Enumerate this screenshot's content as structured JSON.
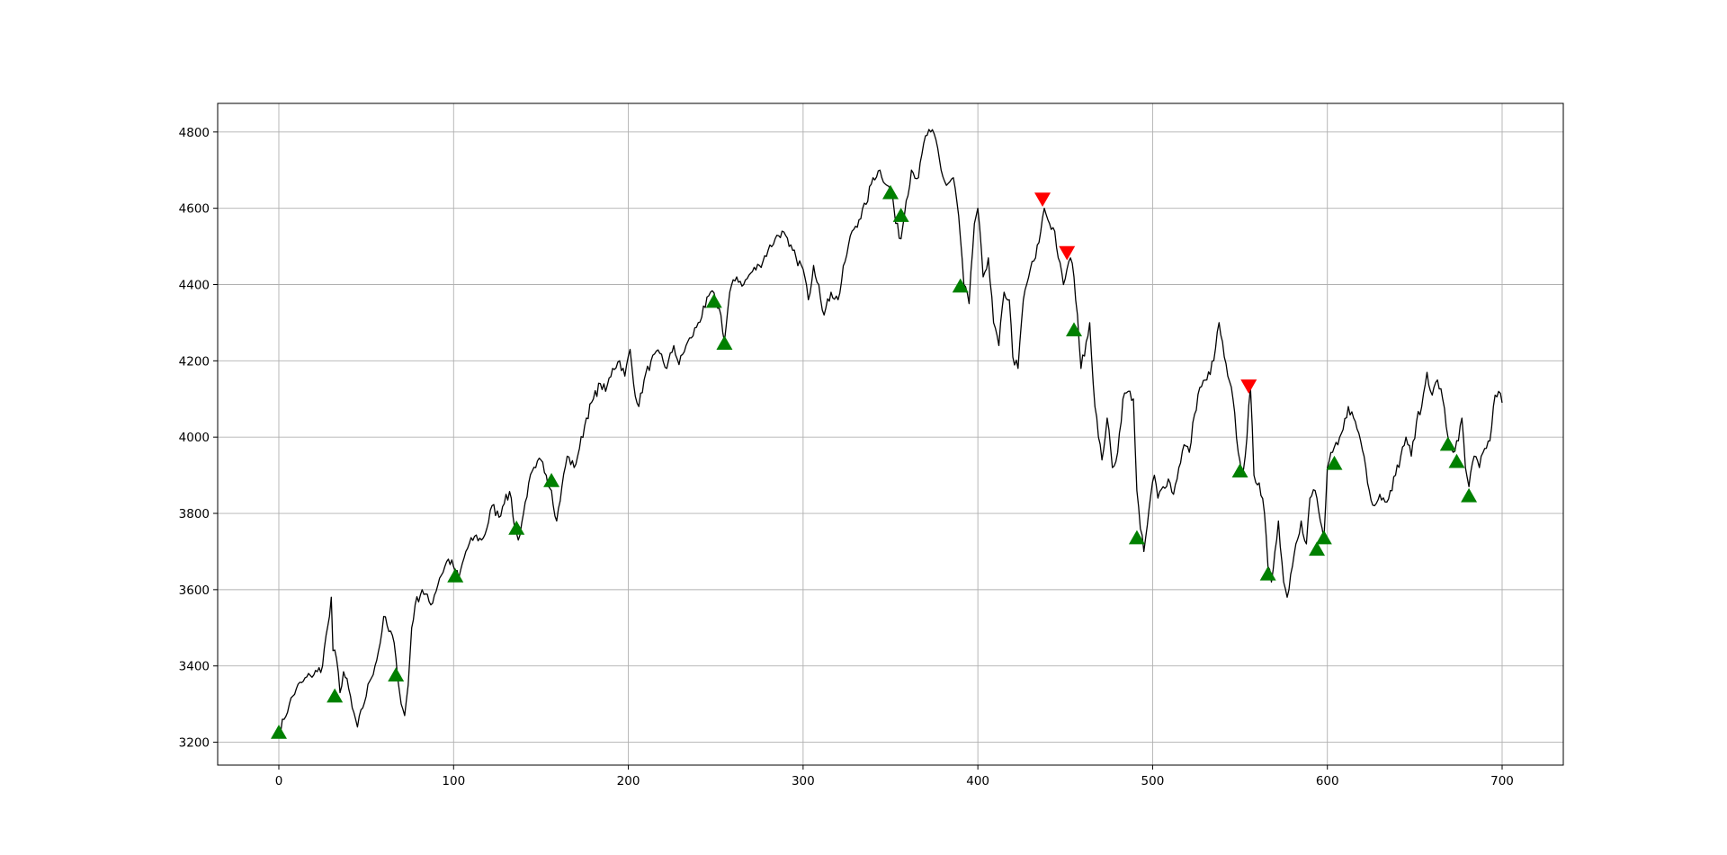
{
  "chart_data": {
    "type": "line",
    "title": "",
    "xlabel": "",
    "ylabel": "",
    "xlim": [
      -35,
      735
    ],
    "ylim": [
      3140,
      4875
    ],
    "x_ticks": [
      0,
      100,
      200,
      300,
      400,
      500,
      600,
      700
    ],
    "y_ticks": [
      3200,
      3400,
      3600,
      3800,
      4000,
      4200,
      4400,
      4600,
      4800
    ],
    "grid": true,
    "line_color": "#000000",
    "price_anchors": [
      [
        0,
        3225
      ],
      [
        3,
        3260
      ],
      [
        6,
        3300
      ],
      [
        10,
        3340
      ],
      [
        14,
        3360
      ],
      [
        18,
        3375
      ],
      [
        22,
        3385
      ],
      [
        25,
        3400
      ],
      [
        27,
        3480
      ],
      [
        29,
        3530
      ],
      [
        30,
        3580
      ],
      [
        31,
        3440
      ],
      [
        33,
        3420
      ],
      [
        35,
        3330
      ],
      [
        37,
        3385
      ],
      [
        40,
        3340
      ],
      [
        42,
        3290
      ],
      [
        45,
        3240
      ],
      [
        48,
        3290
      ],
      [
        52,
        3360
      ],
      [
        55,
        3400
      ],
      [
        58,
        3460
      ],
      [
        60,
        3530
      ],
      [
        63,
        3490
      ],
      [
        65,
        3480
      ],
      [
        67,
        3420
      ],
      [
        70,
        3300
      ],
      [
        72,
        3270
      ],
      [
        74,
        3350
      ],
      [
        76,
        3500
      ],
      [
        78,
        3560
      ],
      [
        82,
        3600
      ],
      [
        87,
        3560
      ],
      [
        92,
        3630
      ],
      [
        97,
        3680
      ],
      [
        100,
        3660
      ],
      [
        103,
        3630
      ],
      [
        107,
        3700
      ],
      [
        112,
        3740
      ],
      [
        116,
        3730
      ],
      [
        119,
        3760
      ],
      [
        122,
        3820
      ],
      [
        126,
        3790
      ],
      [
        130,
        3850
      ],
      [
        133,
        3840
      ],
      [
        135,
        3760
      ],
      [
        137,
        3730
      ],
      [
        140,
        3800
      ],
      [
        143,
        3880
      ],
      [
        147,
        3920
      ],
      [
        150,
        3940
      ],
      [
        153,
        3900
      ],
      [
        156,
        3860
      ],
      [
        159,
        3780
      ],
      [
        162,
        3870
      ],
      [
        165,
        3950
      ],
      [
        169,
        3920
      ],
      [
        172,
        3970
      ],
      [
        176,
        4050
      ],
      [
        180,
        4100
      ],
      [
        184,
        4140
      ],
      [
        187,
        4120
      ],
      [
        191,
        4180
      ],
      [
        195,
        4200
      ],
      [
        198,
        4160
      ],
      [
        201,
        4230
      ],
      [
        203,
        4140
      ],
      [
        206,
        4080
      ],
      [
        209,
        4150
      ],
      [
        213,
        4200
      ],
      [
        218,
        4220
      ],
      [
        222,
        4180
      ],
      [
        226,
        4240
      ],
      [
        229,
        4190
      ],
      [
        233,
        4240
      ],
      [
        236,
        4260
      ],
      [
        240,
        4300
      ],
      [
        244,
        4340
      ],
      [
        247,
        4380
      ],
      [
        250,
        4360
      ],
      [
        253,
        4320
      ],
      [
        255,
        4250
      ],
      [
        258,
        4380
      ],
      [
        262,
        4420
      ],
      [
        266,
        4400
      ],
      [
        270,
        4430
      ],
      [
        275,
        4450
      ],
      [
        280,
        4490
      ],
      [
        284,
        4520
      ],
      [
        288,
        4540
      ],
      [
        292,
        4500
      ],
      [
        296,
        4470
      ],
      [
        300,
        4440
      ],
      [
        303,
        4360
      ],
      [
        306,
        4450
      ],
      [
        309,
        4400
      ],
      [
        312,
        4320
      ],
      [
        316,
        4380
      ],
      [
        320,
        4360
      ],
      [
        324,
        4460
      ],
      [
        328,
        4540
      ],
      [
        332,
        4570
      ],
      [
        336,
        4610
      ],
      [
        340,
        4680
      ],
      [
        344,
        4700
      ],
      [
        348,
        4660
      ],
      [
        351,
        4640
      ],
      [
        353,
        4560
      ],
      [
        356,
        4520
      ],
      [
        359,
        4620
      ],
      [
        362,
        4700
      ],
      [
        366,
        4680
      ],
      [
        370,
        4790
      ],
      [
        373,
        4800
      ],
      [
        376,
        4780
      ],
      [
        379,
        4700
      ],
      [
        382,
        4660
      ],
      [
        386,
        4680
      ],
      [
        389,
        4580
      ],
      [
        392,
        4400
      ],
      [
        395,
        4350
      ],
      [
        398,
        4560
      ],
      [
        400,
        4600
      ],
      [
        403,
        4420
      ],
      [
        406,
        4470
      ],
      [
        409,
        4300
      ],
      [
        412,
        4240
      ],
      [
        415,
        4380
      ],
      [
        418,
        4360
      ],
      [
        420,
        4210
      ],
      [
        423,
        4180
      ],
      [
        426,
        4360
      ],
      [
        430,
        4440
      ],
      [
        433,
        4470
      ],
      [
        436,
        4540
      ],
      [
        438,
        4600
      ],
      [
        441,
        4560
      ],
      [
        444,
        4540
      ],
      [
        446,
        4470
      ],
      [
        449,
        4400
      ],
      [
        451,
        4440
      ],
      [
        453,
        4470
      ],
      [
        455,
        4420
      ],
      [
        457,
        4320
      ],
      [
        459,
        4180
      ],
      [
        462,
        4250
      ],
      [
        464,
        4300
      ],
      [
        466,
        4140
      ],
      [
        469,
        4000
      ],
      [
        471,
        3940
      ],
      [
        474,
        4050
      ],
      [
        477,
        3920
      ],
      [
        480,
        3960
      ],
      [
        483,
        4100
      ],
      [
        486,
        4120
      ],
      [
        489,
        4100
      ],
      [
        491,
        3860
      ],
      [
        493,
        3760
      ],
      [
        495,
        3700
      ],
      [
        497,
        3770
      ],
      [
        499,
        3850
      ],
      [
        501,
        3900
      ],
      [
        503,
        3840
      ],
      [
        506,
        3870
      ],
      [
        509,
        3890
      ],
      [
        512,
        3850
      ],
      [
        515,
        3920
      ],
      [
        518,
        3980
      ],
      [
        521,
        3960
      ],
      [
        524,
        4060
      ],
      [
        527,
        4130
      ],
      [
        531,
        4150
      ],
      [
        535,
        4200
      ],
      [
        538,
        4300
      ],
      [
        541,
        4210
      ],
      [
        543,
        4160
      ],
      [
        546,
        4100
      ],
      [
        549,
        3960
      ],
      [
        551,
        3900
      ],
      [
        553,
        3950
      ],
      [
        556,
        4130
      ],
      [
        558,
        3900
      ],
      [
        561,
        3880
      ],
      [
        564,
        3800
      ],
      [
        566,
        3660
      ],
      [
        568,
        3620
      ],
      [
        570,
        3700
      ],
      [
        572,
        3780
      ],
      [
        575,
        3620
      ],
      [
        577,
        3580
      ],
      [
        579,
        3640
      ],
      [
        582,
        3720
      ],
      [
        585,
        3780
      ],
      [
        588,
        3720
      ],
      [
        590,
        3840
      ],
      [
        593,
        3860
      ],
      [
        596,
        3780
      ],
      [
        598,
        3730
      ],
      [
        600,
        3920
      ],
      [
        603,
        3960
      ],
      [
        606,
        3980
      ],
      [
        609,
        4020
      ],
      [
        612,
        4080
      ],
      [
        615,
        4050
      ],
      [
        618,
        4010
      ],
      [
        621,
        3950
      ],
      [
        624,
        3860
      ],
      [
        627,
        3820
      ],
      [
        630,
        3850
      ],
      [
        633,
        3830
      ],
      [
        636,
        3860
      ],
      [
        639,
        3900
      ],
      [
        642,
        3950
      ],
      [
        645,
        4000
      ],
      [
        648,
        3950
      ],
      [
        651,
        4040
      ],
      [
        654,
        4080
      ],
      [
        657,
        4170
      ],
      [
        660,
        4110
      ],
      [
        663,
        4150
      ],
      [
        666,
        4100
      ],
      [
        669,
        4000
      ],
      [
        672,
        3960
      ],
      [
        675,
        3990
      ],
      [
        677,
        4050
      ],
      [
        679,
        3920
      ],
      [
        681,
        3870
      ],
      [
        684,
        3950
      ],
      [
        687,
        3920
      ],
      [
        690,
        3970
      ],
      [
        693,
        3990
      ],
      [
        696,
        4110
      ],
      [
        698,
        4120
      ],
      [
        700,
        4090
      ]
    ],
    "buy_signals": [
      [
        0,
        3225
      ],
      [
        32,
        3320
      ],
      [
        67,
        3375
      ],
      [
        101,
        3635
      ],
      [
        136,
        3760
      ],
      [
        156,
        3885
      ],
      [
        249,
        4355
      ],
      [
        255,
        4245
      ],
      [
        350,
        4640
      ],
      [
        356,
        4580
      ],
      [
        390,
        4395
      ],
      [
        455,
        4280
      ],
      [
        491,
        3735
      ],
      [
        550,
        3910
      ],
      [
        566,
        3640
      ],
      [
        594,
        3705
      ],
      [
        598,
        3735
      ],
      [
        604,
        3930
      ],
      [
        669,
        3980
      ],
      [
        674,
        3935
      ],
      [
        681,
        3845
      ]
    ],
    "sell_signals": [
      [
        437,
        4625
      ],
      [
        451,
        4485
      ],
      [
        555,
        4135
      ]
    ],
    "buy_marker_color": "#008000",
    "sell_marker_color": "#ff0000"
  }
}
